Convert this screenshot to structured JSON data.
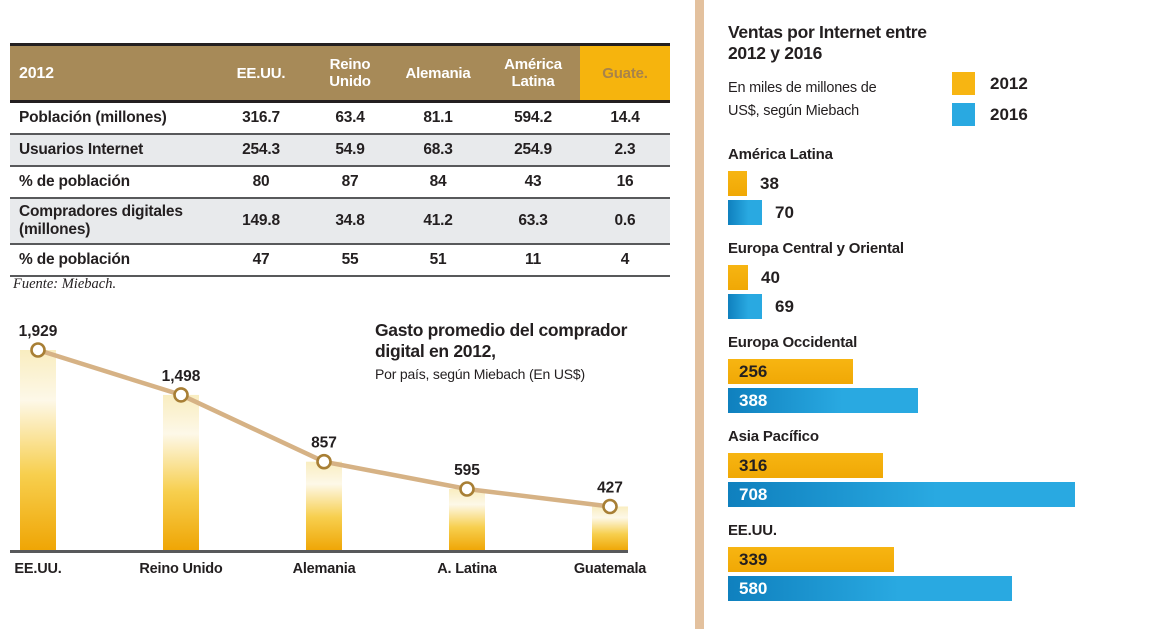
{
  "colors": {
    "divider": "#e3c19e",
    "table_header_bg": "#a78a58",
    "table_header_text": "#ffffff",
    "guate_header_bg": "#f6b40d",
    "guate_header_text": "#a8834a",
    "row_stripe": "#e8eaec",
    "row_plain": "#ffffff",
    "row_border": "#58595b",
    "axis": "#58595b",
    "line": "#d6b285",
    "marker_stroke": "#a87f35",
    "marker_fill": "#ffffff",
    "gold_grad_top": "#f9edc0",
    "gold_grad_mid1": "#fdf8e8",
    "gold_grad_mid2": "#f7cf4e",
    "gold_grad_bottom": "#efa504",
    "yellow": "#f7b512",
    "yellow_dark": "#f0a805",
    "blue": "#29a9e1",
    "blue_dark": "#0f80be",
    "text_dark": "#231f20",
    "bar_text_light": "#ffffff"
  },
  "table": {
    "title_cell": "2012",
    "columns": [
      "EE.UU.",
      "Reino Unido",
      "Alemania",
      "América Latina",
      "Guate."
    ],
    "rows": [
      {
        "label": "Población (millones)",
        "values": [
          "316.7",
          "63.4",
          "81.1",
          "594.2",
          "14.4"
        ],
        "stripe": false
      },
      {
        "label": "Usuarios Internet",
        "values": [
          "254.3",
          "54.9",
          "68.3",
          "254.9",
          "2.3"
        ],
        "stripe": true
      },
      {
        "label": "% de población",
        "values": [
          "80",
          "87",
          "84",
          "43",
          "16"
        ],
        "stripe": false
      },
      {
        "label": "Compradores digitales (millones)",
        "values": [
          "149.8",
          "34.8",
          "41.2",
          "63.3",
          "0.6"
        ],
        "stripe": true
      },
      {
        "label": "% de población",
        "values": [
          "47",
          "55",
          "51",
          "11",
          "4"
        ],
        "stripe": false
      }
    ],
    "source": "Fuente: Miebach."
  },
  "chart_data": [
    {
      "id": "gasto-promedio",
      "type": "line",
      "title_lines": [
        "Gasto promedio del comprador",
        "digital en 2012,"
      ],
      "subtitle": "Por país, según Miebach (En US$)",
      "categories": [
        "EE.UU.",
        "Reino Unido",
        "Alemania",
        "A. Latina",
        "Guatemala"
      ],
      "values": [
        1929,
        1498,
        857,
        595,
        427
      ],
      "value_labels": [
        "1,929",
        "1,498",
        "857",
        "595",
        "427"
      ],
      "ylim": [
        0,
        1929
      ],
      "grid": false,
      "legend": "none",
      "marker": "open-circle",
      "bars_under_markers": true
    },
    {
      "id": "ventas-internet",
      "type": "bar",
      "orientation": "horizontal",
      "title_lines": [
        "Ventas por Internet entre",
        "2012 y 2016"
      ],
      "subtitle_lines": [
        "En miles de millones de",
        "US$, según Miebach"
      ],
      "categories": [
        "América Latina",
        "Europa Central y Oriental",
        "Europa Occidental",
        "Asia Pacífico",
        "EE.UU."
      ],
      "series": [
        {
          "name": "2012",
          "color": "#f7b512",
          "values": [
            38,
            40,
            256,
            316,
            339
          ]
        },
        {
          "name": "2016",
          "color": "#29a9e1",
          "values": [
            70,
            69,
            388,
            708,
            580
          ]
        }
      ],
      "value_labels_2012": [
        "38",
        "40",
        "256",
        "316",
        "339"
      ],
      "value_labels_2016": [
        "70",
        "69",
        "388",
        "708",
        "580"
      ],
      "xlim": [
        0,
        708
      ],
      "legend_position": "top-right",
      "grid": false
    }
  ]
}
